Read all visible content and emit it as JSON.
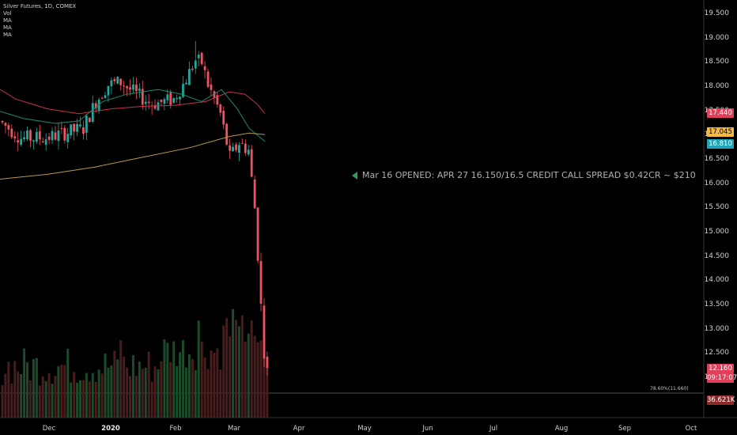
{
  "legend": {
    "title": "Silver Futures, 1D, COMEX",
    "indicators": [
      "Vol",
      "MA",
      "MA",
      "MA"
    ]
  },
  "annotation": {
    "text": "Mar 16 OPENED: APR 27 16.150/16.5 CREDIT CALL SPREAD $0.42CR ~ $210"
  },
  "price_tags": {
    "ma_red": {
      "text": "17.440",
      "bg": "#e0405a",
      "fg": "#ffffff"
    },
    "ma_yellow": {
      "text": "17.045",
      "bg": "#f5b942",
      "fg": "#000000"
    },
    "ma_teal": {
      "text": "16.810",
      "bg": "#1ea6b8",
      "fg": "#ffffff"
    },
    "last_price": {
      "text": "12.160",
      "bg": "#e0405a",
      "fg": "#ffffff"
    },
    "countdown": {
      "text": "09:17:07",
      "bg": "#e0405a",
      "fg": "#ffffff"
    },
    "volume": {
      "text": "36.621K",
      "bg": "#8a2a2a",
      "fg": "#ffffff"
    }
  },
  "fib": {
    "label": "78.60%(11.660)",
    "price": 11.66
  },
  "colors": {
    "up": "#26a69a",
    "down": "#ef5362",
    "vol_up": "#1c4a2a",
    "vol_down": "#4a1c1c",
    "ma_red": "#c9304a",
    "ma_teal": "#1e8c6e",
    "ma_yellow": "#b89a4a"
  },
  "chart_data": {
    "type": "candlestick",
    "title": "Silver Futures, 1D, COMEX",
    "y_axis": {
      "range": [
        11.9,
        19.7
      ],
      "ticks": [
        "19.500",
        "19.000",
        "18.500",
        "18.000",
        "17.500",
        "17.000",
        "16.500",
        "16.000",
        "15.500",
        "15.000",
        "14.500",
        "14.000",
        "13.500",
        "13.000",
        "12.500",
        "12.000"
      ]
    },
    "x_axis": {
      "months": [
        {
          "label": "Dec",
          "bold": false
        },
        {
          "label": "2020",
          "bold": true
        },
        {
          "label": "Feb",
          "bold": false
        },
        {
          "label": "Mar",
          "bold": false
        },
        {
          "label": "Apr",
          "bold": false
        },
        {
          "label": "May",
          "bold": false
        },
        {
          "label": "Jun",
          "bold": false
        },
        {
          "label": "Jul",
          "bold": false
        },
        {
          "label": "Aug",
          "bold": false
        },
        {
          "label": "Sep",
          "bold": false
        },
        {
          "label": "Oct",
          "bold": false
        }
      ]
    },
    "last_price": 12.16,
    "key_levels": {
      "high": 18.95,
      "low": 12.16,
      "fib_78_6": 11.66
    }
  }
}
